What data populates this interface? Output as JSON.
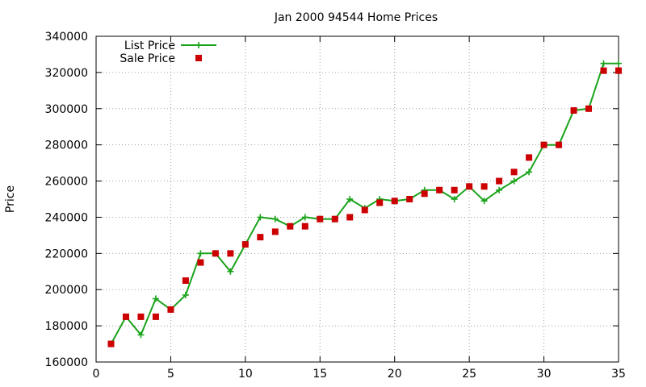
{
  "chart_data": {
    "type": "line",
    "title": "Jan 2000 94544 Home Prices",
    "xlabel": "",
    "ylabel": "Price",
    "xlim": [
      0,
      35
    ],
    "ylim": [
      160000,
      340000
    ],
    "x_ticks": [
      0,
      5,
      10,
      15,
      20,
      25,
      30,
      35
    ],
    "y_ticks": [
      160000,
      180000,
      200000,
      220000,
      240000,
      260000,
      280000,
      300000,
      320000,
      340000
    ],
    "grid": true,
    "legend_position": "top-left",
    "x": [
      1,
      2,
      3,
      4,
      5,
      6,
      7,
      8,
      9,
      10,
      11,
      12,
      13,
      14,
      15,
      16,
      17,
      18,
      19,
      20,
      21,
      22,
      23,
      24,
      25,
      26,
      27,
      28,
      29,
      30,
      31,
      32,
      33,
      34,
      35
    ],
    "series": [
      {
        "name": "List Price",
        "style": "linespoints",
        "color": "#1aa31a",
        "marker": "plus",
        "values": [
          170000,
          185000,
          175000,
          195000,
          189000,
          197000,
          220000,
          220000,
          210000,
          225000,
          240000,
          239000,
          235000,
          240000,
          239000,
          239000,
          250000,
          245000,
          250000,
          249000,
          250000,
          255000,
          255000,
          250000,
          257000,
          249000,
          255000,
          260000,
          265000,
          280000,
          280000,
          299000,
          300000,
          325000,
          325000
        ]
      },
      {
        "name": "Sale Price",
        "style": "points",
        "color": "#cc0000",
        "marker": "square",
        "values": [
          170000,
          185000,
          185000,
          185000,
          189000,
          205000,
          215000,
          220000,
          220000,
          225000,
          229000,
          232000,
          235000,
          235000,
          239000,
          239000,
          240000,
          244000,
          248000,
          249000,
          250000,
          253000,
          255000,
          255000,
          257000,
          257000,
          260000,
          265000,
          273000,
          280000,
          280000,
          299000,
          300000,
          321000,
          321000
        ]
      }
    ]
  }
}
